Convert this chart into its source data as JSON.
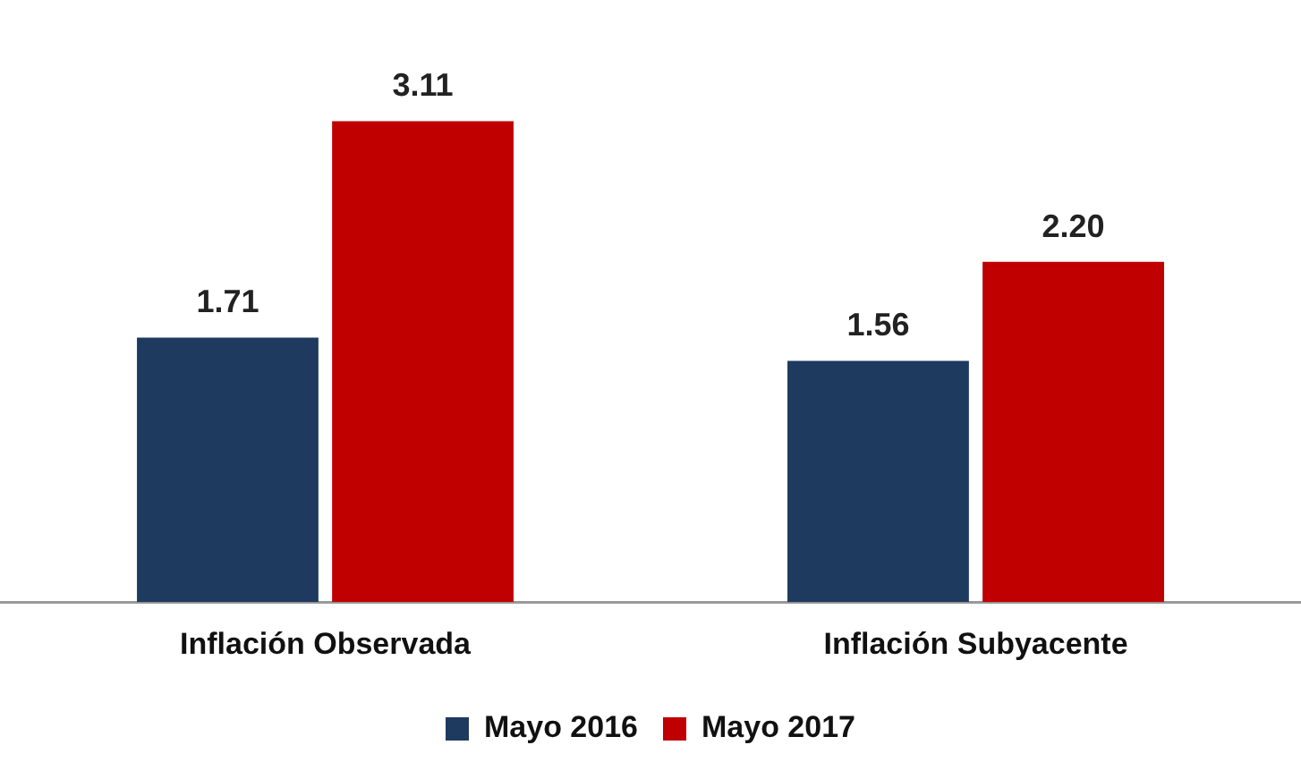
{
  "chart_data": {
    "type": "bar",
    "categories": [
      "Inflación Observada",
      "Inflación Subyacente"
    ],
    "series": [
      {
        "name": "Mayo 2016",
        "color": "#1f3a5f",
        "values": [
          1.71,
          1.56
        ],
        "value_labels": [
          "1.71",
          "1.56"
        ]
      },
      {
        "name": "Mayo 2017",
        "color": "#c00000",
        "values": [
          3.11,
          2.2
        ],
        "value_labels": [
          "3.11",
          "2.20"
        ]
      }
    ],
    "tick_labels": "x",
    "legend": "bottom"
  }
}
